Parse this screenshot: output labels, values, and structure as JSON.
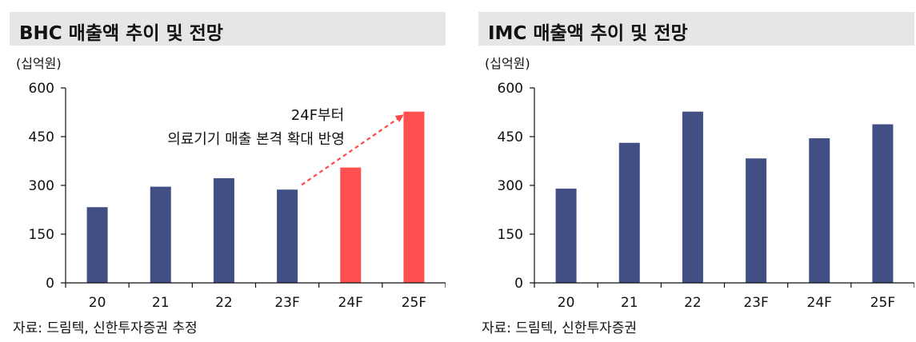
{
  "colors": {
    "bar": "#414f84",
    "highlight": "#ff5050",
    "arrow": "#ff4848"
  },
  "panels": [
    {
      "title": "BHC 매출액 추이 및 전망",
      "unit": "(십억원)",
      "source": "자료: 드림텍, 신한투자증권 추정",
      "annotation": {
        "line1": "24F부터",
        "line2": "의료기기 매출 본격 확대 반영"
      }
    },
    {
      "title": "IMC 매출액 추이 및 전망",
      "unit": "(십억원)",
      "source": "자료: 드림텍, 신한투자증권"
    }
  ],
  "chart_data": [
    {
      "type": "bar",
      "title": "BHC 매출액 추이 및 전망",
      "ylabel": "(십억원)",
      "categories": [
        "20",
        "21",
        "22",
        "23F",
        "24F",
        "25F"
      ],
      "values": [
        233,
        296,
        322,
        287,
        355,
        527
      ],
      "highlight": [
        false,
        false,
        false,
        false,
        true,
        true
      ],
      "ylim": [
        0,
        600
      ],
      "yticks": [
        0,
        150,
        300,
        450,
        600
      ],
      "grid": false,
      "annotation": "24F부터 의료기기 매출 본격 확대 반영"
    },
    {
      "type": "bar",
      "title": "IMC 매출액 추이 및 전망",
      "ylabel": "(십억원)",
      "categories": [
        "20",
        "21",
        "22",
        "23F",
        "24F",
        "25F"
      ],
      "values": [
        290,
        431,
        527,
        383,
        445,
        488
      ],
      "highlight": [
        false,
        false,
        false,
        false,
        false,
        false
      ],
      "ylim": [
        0,
        600
      ],
      "yticks": [
        0,
        150,
        300,
        450,
        600
      ],
      "grid": false
    }
  ]
}
